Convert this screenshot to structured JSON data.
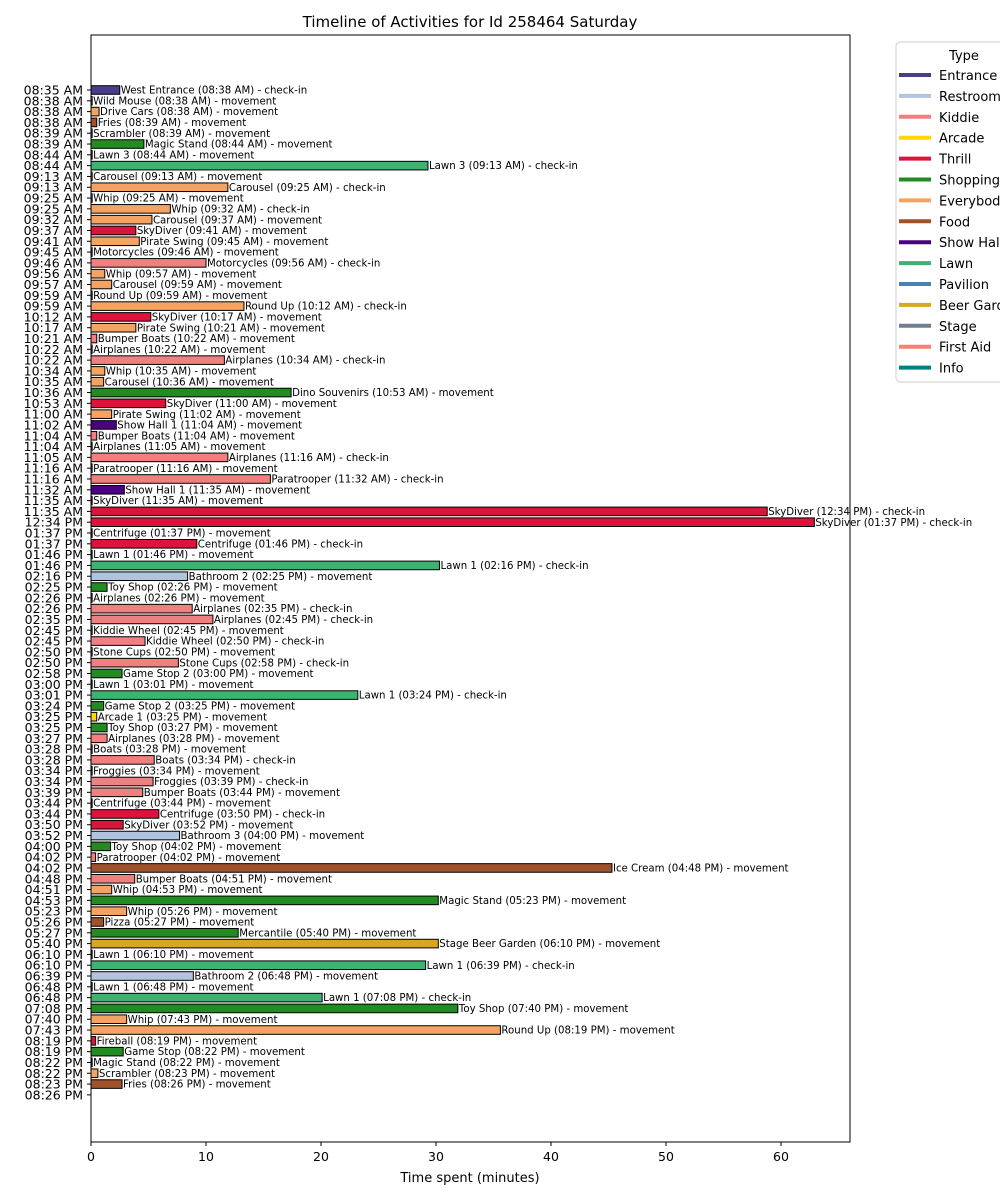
{
  "chart_data": {
    "type": "bar",
    "orientation": "horizontal",
    "title": "Timeline of Activities for Id 258464 Saturday",
    "xlabel": "Time spent (minutes)",
    "ylabel": "",
    "xlim": [
      0,
      66
    ],
    "xticks": [
      0,
      10,
      20,
      30,
      40,
      50,
      60
    ],
    "legend": {
      "title": "Type",
      "position": "top-right",
      "entries": [
        {
          "name": "Entrance",
          "color": "#483D8B"
        },
        {
          "name": "Restroom",
          "color": "#B0C4DE"
        },
        {
          "name": "Kiddie",
          "color": "#F08080"
        },
        {
          "name": "Arcade",
          "color": "#FFD700"
        },
        {
          "name": "Thrill",
          "color": "#DC143C"
        },
        {
          "name": "Shopping",
          "color": "#228B22"
        },
        {
          "name": "Everybody",
          "color": "#F4A460"
        },
        {
          "name": "Food",
          "color": "#A0522D"
        },
        {
          "name": "Show Hall",
          "color": "#4B0082"
        },
        {
          "name": "Lawn",
          "color": "#3CB371"
        },
        {
          "name": "Pavilion",
          "color": "#4682B4"
        },
        {
          "name": "Beer Garden",
          "color": "#DAA520"
        },
        {
          "name": "Stage",
          "color": "#708090"
        },
        {
          "name": "First Aid",
          "color": "#FA8072"
        },
        {
          "name": "Info",
          "color": "#008080"
        }
      ]
    },
    "rows": [
      {
        "tick": "08:35 AM",
        "value": 2.5,
        "type": "Entrance",
        "label": "West Entrance (08:38 AM) - check-in"
      },
      {
        "tick": "08:38 AM",
        "value": 0.1,
        "type": "Kiddie",
        "label": "Wild Mouse (08:38 AM) - movement"
      },
      {
        "tick": "08:38 AM",
        "value": 0.7,
        "type": "Everybody",
        "label": "Drive Cars (08:38 AM) - movement"
      },
      {
        "tick": "08:38 AM",
        "value": 0.5,
        "type": "Food",
        "label": "Fries (08:39 AM) - movement"
      },
      {
        "tick": "08:39 AM",
        "value": 0.1,
        "type": "Everybody",
        "label": "Scrambler (08:39 AM) - movement"
      },
      {
        "tick": "08:39 AM",
        "value": 4.6,
        "type": "Shopping",
        "label": "Magic Stand (08:44 AM) - movement"
      },
      {
        "tick": "08:44 AM",
        "value": 0.1,
        "type": "Lawn",
        "label": "Lawn 3 (08:44 AM) - movement"
      },
      {
        "tick": "08:44 AM",
        "value": 29.3,
        "type": "Lawn",
        "label": "Lawn 3 (09:13 AM) - check-in"
      },
      {
        "tick": "09:13 AM",
        "value": 0.1,
        "type": "Everybody",
        "label": "Carousel (09:13 AM) - movement"
      },
      {
        "tick": "09:13 AM",
        "value": 11.9,
        "type": "Everybody",
        "label": "Carousel (09:25 AM) - check-in"
      },
      {
        "tick": "09:25 AM",
        "value": 0.1,
        "type": "Everybody",
        "label": "Whip (09:25 AM) - movement"
      },
      {
        "tick": "09:25 AM",
        "value": 6.9,
        "type": "Everybody",
        "label": "Whip (09:32 AM) - check-in"
      },
      {
        "tick": "09:32 AM",
        "value": 5.3,
        "type": "Everybody",
        "label": "Carousel (09:37 AM) - movement"
      },
      {
        "tick": "09:37 AM",
        "value": 3.9,
        "type": "Thrill",
        "label": "SkyDiver (09:41 AM) - movement"
      },
      {
        "tick": "09:41 AM",
        "value": 4.2,
        "type": "Everybody",
        "label": "Pirate Swing (09:45 AM) - movement"
      },
      {
        "tick": "09:45 AM",
        "value": 0.1,
        "type": "Kiddie",
        "label": "Motorcycles (09:46 AM) - movement"
      },
      {
        "tick": "09:46 AM",
        "value": 10.0,
        "type": "Kiddie",
        "label": "Motorcycles (09:56 AM) - check-in"
      },
      {
        "tick": "09:56 AM",
        "value": 1.2,
        "type": "Everybody",
        "label": "Whip (09:57 AM) - movement"
      },
      {
        "tick": "09:57 AM",
        "value": 1.8,
        "type": "Everybody",
        "label": "Carousel (09:59 AM) - movement"
      },
      {
        "tick": "09:59 AM",
        "value": 0.1,
        "type": "Everybody",
        "label": "Round Up (09:59 AM) - movement"
      },
      {
        "tick": "09:59 AM",
        "value": 13.3,
        "type": "Everybody",
        "label": "Round Up (10:12 AM) - check-in"
      },
      {
        "tick": "10:12 AM",
        "value": 5.2,
        "type": "Thrill",
        "label": "SkyDiver (10:17 AM) - movement"
      },
      {
        "tick": "10:17 AM",
        "value": 3.9,
        "type": "Everybody",
        "label": "Pirate Swing (10:21 AM) - movement"
      },
      {
        "tick": "10:21 AM",
        "value": 0.5,
        "type": "Kiddie",
        "label": "Bumper Boats (10:22 AM) - movement"
      },
      {
        "tick": "10:22 AM",
        "value": 0.1,
        "type": "Kiddie",
        "label": "Airplanes (10:22 AM) - movement"
      },
      {
        "tick": "10:22 AM",
        "value": 11.6,
        "type": "Kiddie",
        "label": "Airplanes (10:34 AM) - check-in"
      },
      {
        "tick": "10:34 AM",
        "value": 1.2,
        "type": "Everybody",
        "label": "Whip (10:35 AM) - movement"
      },
      {
        "tick": "10:35 AM",
        "value": 1.1,
        "type": "Everybody",
        "label": "Carousel (10:36 AM) - movement"
      },
      {
        "tick": "10:36 AM",
        "value": 17.4,
        "type": "Shopping",
        "label": "Dino Souvenirs (10:53 AM) - movement"
      },
      {
        "tick": "10:53 AM",
        "value": 6.5,
        "type": "Thrill",
        "label": "SkyDiver (11:00 AM) - movement"
      },
      {
        "tick": "11:00 AM",
        "value": 1.8,
        "type": "Everybody",
        "label": "Pirate Swing (11:02 AM) - movement"
      },
      {
        "tick": "11:02 AM",
        "value": 2.2,
        "type": "Show Hall",
        "label": "Show Hall 1 (11:04 AM) - movement"
      },
      {
        "tick": "11:04 AM",
        "value": 0.5,
        "type": "Kiddie",
        "label": "Bumper Boats (11:04 AM) - movement"
      },
      {
        "tick": "11:04 AM",
        "value": 0.1,
        "type": "Kiddie",
        "label": "Airplanes (11:05 AM) - movement"
      },
      {
        "tick": "11:05 AM",
        "value": 11.9,
        "type": "Kiddie",
        "label": "Airplanes (11:16 AM) - check-in"
      },
      {
        "tick": "11:16 AM",
        "value": 0.1,
        "type": "Kiddie",
        "label": "Paratrooper (11:16 AM) - movement"
      },
      {
        "tick": "11:16 AM",
        "value": 15.6,
        "type": "Kiddie",
        "label": "Paratrooper (11:32 AM) - check-in"
      },
      {
        "tick": "11:32 AM",
        "value": 2.9,
        "type": "Show Hall",
        "label": "Show Hall 1 (11:35 AM) - movement"
      },
      {
        "tick": "11:35 AM",
        "value": 0.1,
        "type": "Thrill",
        "label": "SkyDiver (11:35 AM) - movement"
      },
      {
        "tick": "11:35 AM",
        "value": 58.8,
        "type": "Thrill",
        "label": "SkyDiver (12:34 PM) - check-in"
      },
      {
        "tick": "12:34 PM",
        "value": 62.9,
        "type": "Thrill",
        "label": "SkyDiver (01:37 PM) - check-in"
      },
      {
        "tick": "01:37 PM",
        "value": 0.1,
        "type": "Thrill",
        "label": "Centrifuge (01:37 PM) - movement"
      },
      {
        "tick": "01:37 PM",
        "value": 9.2,
        "type": "Thrill",
        "label": "Centrifuge (01:46 PM) - check-in"
      },
      {
        "tick": "01:46 PM",
        "value": 0.1,
        "type": "Lawn",
        "label": "Lawn 1 (01:46 PM) - movement"
      },
      {
        "tick": "01:46 PM",
        "value": 30.3,
        "type": "Lawn",
        "label": "Lawn 1 (02:16 PM) - check-in"
      },
      {
        "tick": "02:16 PM",
        "value": 8.4,
        "type": "Restroom",
        "label": "Bathroom 2 (02:25 PM) - movement"
      },
      {
        "tick": "02:25 PM",
        "value": 1.4,
        "type": "Shopping",
        "label": "Toy Shop (02:26 PM) - movement"
      },
      {
        "tick": "02:26 PM",
        "value": 0.1,
        "type": "Kiddie",
        "label": "Airplanes (02:26 PM) - movement"
      },
      {
        "tick": "02:26 PM",
        "value": 8.8,
        "type": "Kiddie",
        "label": "Airplanes (02:35 PM) - check-in"
      },
      {
        "tick": "02:35 PM",
        "value": 10.6,
        "type": "Kiddie",
        "label": "Airplanes (02:45 PM) - check-in"
      },
      {
        "tick": "02:45 PM",
        "value": 0.1,
        "type": "Kiddie",
        "label": "Kiddie Wheel (02:45 PM) - movement"
      },
      {
        "tick": "02:45 PM",
        "value": 4.7,
        "type": "Kiddie",
        "label": "Kiddie Wheel (02:50 PM) - check-in"
      },
      {
        "tick": "02:50 PM",
        "value": 0.1,
        "type": "Kiddie",
        "label": "Stone Cups (02:50 PM) - movement"
      },
      {
        "tick": "02:50 PM",
        "value": 7.6,
        "type": "Kiddie",
        "label": "Stone Cups (02:58 PM) - check-in"
      },
      {
        "tick": "02:58 PM",
        "value": 2.7,
        "type": "Shopping",
        "label": "Game Stop 2 (03:00 PM) - movement"
      },
      {
        "tick": "03:00 PM",
        "value": 0.1,
        "type": "Lawn",
        "label": "Lawn 1 (03:01 PM) - movement"
      },
      {
        "tick": "03:01 PM",
        "value": 23.2,
        "type": "Lawn",
        "label": "Lawn 1 (03:24 PM) - check-in"
      },
      {
        "tick": "03:24 PM",
        "value": 1.1,
        "type": "Shopping",
        "label": "Game Stop 2 (03:25 PM) - movement"
      },
      {
        "tick": "03:25 PM",
        "value": 0.5,
        "type": "Arcade",
        "label": "Arcade 1 (03:25 PM) - movement"
      },
      {
        "tick": "03:25 PM",
        "value": 1.4,
        "type": "Shopping",
        "label": "Toy Shop (03:27 PM) - movement"
      },
      {
        "tick": "03:27 PM",
        "value": 1.4,
        "type": "Kiddie",
        "label": "Airplanes (03:28 PM) - movement"
      },
      {
        "tick": "03:28 PM",
        "value": 0.1,
        "type": "Kiddie",
        "label": "Boats (03:28 PM) - movement"
      },
      {
        "tick": "03:28 PM",
        "value": 5.5,
        "type": "Kiddie",
        "label": "Boats (03:34 PM) - check-in"
      },
      {
        "tick": "03:34 PM",
        "value": 0.1,
        "type": "Kiddie",
        "label": "Froggies (03:34 PM) - movement"
      },
      {
        "tick": "03:34 PM",
        "value": 5.4,
        "type": "Kiddie",
        "label": "Froggies (03:39 PM) - check-in"
      },
      {
        "tick": "03:39 PM",
        "value": 4.5,
        "type": "Kiddie",
        "label": "Bumper Boats (03:44 PM) - movement"
      },
      {
        "tick": "03:44 PM",
        "value": 0.1,
        "type": "Thrill",
        "label": "Centrifuge (03:44 PM) - movement"
      },
      {
        "tick": "03:44 PM",
        "value": 5.9,
        "type": "Thrill",
        "label": "Centrifuge (03:50 PM) - check-in"
      },
      {
        "tick": "03:50 PM",
        "value": 2.8,
        "type": "Thrill",
        "label": "SkyDiver (03:52 PM) - movement"
      },
      {
        "tick": "03:52 PM",
        "value": 7.7,
        "type": "Restroom",
        "label": "Bathroom 3 (04:00 PM) - movement"
      },
      {
        "tick": "04:00 PM",
        "value": 1.7,
        "type": "Shopping",
        "label": "Toy Shop (04:02 PM) - movement"
      },
      {
        "tick": "04:02 PM",
        "value": 0.4,
        "type": "Kiddie",
        "label": "Paratrooper (04:02 PM) - movement"
      },
      {
        "tick": "04:02 PM",
        "value": 45.3,
        "type": "Food",
        "label": "Ice Cream (04:48 PM) - movement"
      },
      {
        "tick": "04:48 PM",
        "value": 3.8,
        "type": "Kiddie",
        "label": "Bumper Boats (04:51 PM) - movement"
      },
      {
        "tick": "04:51 PM",
        "value": 1.8,
        "type": "Everybody",
        "label": "Whip (04:53 PM) - movement"
      },
      {
        "tick": "04:53 PM",
        "value": 30.2,
        "type": "Shopping",
        "label": "Magic Stand (05:23 PM) - movement"
      },
      {
        "tick": "05:23 PM",
        "value": 3.1,
        "type": "Everybody",
        "label": "Whip (05:26 PM) - movement"
      },
      {
        "tick": "05:26 PM",
        "value": 1.1,
        "type": "Food",
        "label": "Pizza (05:27 PM) - movement"
      },
      {
        "tick": "05:27 PM",
        "value": 12.8,
        "type": "Shopping",
        "label": "Mercantile (05:40 PM) - movement"
      },
      {
        "tick": "05:40 PM",
        "value": 30.2,
        "type": "Beer Garden",
        "label": "Stage Beer Garden (06:10 PM) - movement"
      },
      {
        "tick": "06:10 PM",
        "value": 0.1,
        "type": "Lawn",
        "label": "Lawn 1 (06:10 PM) - movement"
      },
      {
        "tick": "06:10 PM",
        "value": 29.1,
        "type": "Lawn",
        "label": "Lawn 1 (06:39 PM) - check-in"
      },
      {
        "tick": "06:39 PM",
        "value": 8.9,
        "type": "Restroom",
        "label": "Bathroom 2 (06:48 PM) - movement"
      },
      {
        "tick": "06:48 PM",
        "value": 0.1,
        "type": "Lawn",
        "label": "Lawn 1 (06:48 PM) - movement"
      },
      {
        "tick": "06:48 PM",
        "value": 20.1,
        "type": "Lawn",
        "label": "Lawn 1 (07:08 PM) - check-in"
      },
      {
        "tick": "07:08 PM",
        "value": 31.9,
        "type": "Shopping",
        "label": "Toy Shop (07:40 PM) - movement"
      },
      {
        "tick": "07:40 PM",
        "value": 3.1,
        "type": "Everybody",
        "label": "Whip (07:43 PM) - movement"
      },
      {
        "tick": "07:43 PM",
        "value": 35.6,
        "type": "Everybody",
        "label": "Round Up (08:19 PM) - movement"
      },
      {
        "tick": "08:19 PM",
        "value": 0.4,
        "type": "Thrill",
        "label": "Fireball (08:19 PM) - movement"
      },
      {
        "tick": "08:19 PM",
        "value": 2.8,
        "type": "Shopping",
        "label": "Game Stop (08:22 PM) - movement"
      },
      {
        "tick": "08:22 PM",
        "value": 0.1,
        "type": "Shopping",
        "label": "Magic Stand (08:22 PM) - movement"
      },
      {
        "tick": "08:22 PM",
        "value": 0.6,
        "type": "Everybody",
        "label": "Scrambler (08:23 PM) - movement"
      },
      {
        "tick": "08:23 PM",
        "value": 2.7,
        "type": "Food",
        "label": "Fries (08:26 PM) - movement"
      },
      {
        "tick": "08:26 PM",
        "value": 0,
        "type": "",
        "label": ""
      }
    ]
  }
}
